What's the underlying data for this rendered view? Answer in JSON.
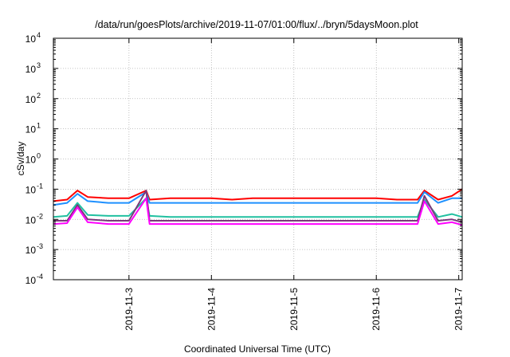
{
  "chart_data": {
    "type": "line",
    "title": "/data/run/goesPlots/archive/2019-11-07/01:00/flux/../bryn/5daysMoon.plot",
    "xlabel": "Coordinated Universal Time (UTC)",
    "ylabel": "cSv/day",
    "xscale": "time",
    "yscale": "log",
    "xlim": [
      "2019-11-02T02:00",
      "2019-11-07T01:00"
    ],
    "ylim": [
      0.0001,
      10000
    ],
    "grid": true,
    "x_ticks": [
      "2019-11-3",
      "2019-11-4",
      "2019-11-5",
      "2019-11-6",
      "2019-11-7"
    ],
    "y_ticks": [
      {
        "base": "10",
        "exp": "-4"
      },
      {
        "base": "10",
        "exp": "-3"
      },
      {
        "base": "10",
        "exp": "-2"
      },
      {
        "base": "10",
        "exp": "-1"
      },
      {
        "base": "10",
        "exp": "0"
      },
      {
        "base": "10",
        "exp": "1"
      },
      {
        "base": "10",
        "exp": "2"
      },
      {
        "base": "10",
        "exp": "3"
      },
      {
        "base": "10",
        "exp": "4"
      }
    ],
    "series": [
      {
        "color": "#ff0000",
        "x": [
          "2019-11-02T02:00",
          "2019-11-02T06:00",
          "2019-11-02T09:00",
          "2019-11-02T12:00",
          "2019-11-02T18:00",
          "2019-11-03T00:00",
          "2019-11-03T05:00",
          "2019-11-03T06:00",
          "2019-11-03T12:00",
          "2019-11-03T18:00",
          "2019-11-04T00:00",
          "2019-11-04T06:00",
          "2019-11-04T12:00",
          "2019-11-04T18:00",
          "2019-11-05T00:00",
          "2019-11-05T06:00",
          "2019-11-05T12:00",
          "2019-11-05T18:00",
          "2019-11-06T00:00",
          "2019-11-06T06:00",
          "2019-11-06T12:00",
          "2019-11-06T14:00",
          "2019-11-06T18:00",
          "2019-11-06T22:00",
          "2019-11-07T01:00"
        ],
        "y": [
          0.04,
          0.045,
          0.09,
          0.055,
          0.05,
          0.05,
          0.09,
          0.045,
          0.05,
          0.05,
          0.05,
          0.045,
          0.05,
          0.05,
          0.05,
          0.05,
          0.05,
          0.05,
          0.05,
          0.045,
          0.045,
          0.09,
          0.045,
          0.06,
          0.1
        ]
      },
      {
        "color": "#1e90ff",
        "x": [
          "2019-11-02T02:00",
          "2019-11-02T06:00",
          "2019-11-02T09:00",
          "2019-11-02T12:00",
          "2019-11-02T18:00",
          "2019-11-03T00:00",
          "2019-11-03T05:00",
          "2019-11-03T06:00",
          "2019-11-03T12:00",
          "2019-11-03T18:00",
          "2019-11-04T00:00",
          "2019-11-04T06:00",
          "2019-11-04T12:00",
          "2019-11-04T18:00",
          "2019-11-05T00:00",
          "2019-11-05T06:00",
          "2019-11-05T12:00",
          "2019-11-05T18:00",
          "2019-11-06T00:00",
          "2019-11-06T06:00",
          "2019-11-06T12:00",
          "2019-11-06T14:00",
          "2019-11-06T18:00",
          "2019-11-06T22:00",
          "2019-11-07T01:00"
        ],
        "y": [
          0.03,
          0.035,
          0.07,
          0.04,
          0.035,
          0.035,
          0.08,
          0.035,
          0.035,
          0.035,
          0.035,
          0.035,
          0.035,
          0.035,
          0.035,
          0.035,
          0.035,
          0.035,
          0.035,
          0.035,
          0.035,
          0.08,
          0.035,
          0.05,
          0.05
        ]
      },
      {
        "color": "#20c0a0",
        "x": [
          "2019-11-02T02:00",
          "2019-11-02T06:00",
          "2019-11-02T09:00",
          "2019-11-02T12:00",
          "2019-11-02T18:00",
          "2019-11-03T00:00",
          "2019-11-03T05:00",
          "2019-11-03T06:00",
          "2019-11-03T12:00",
          "2019-11-03T18:00",
          "2019-11-04T00:00",
          "2019-11-04T06:00",
          "2019-11-04T12:00",
          "2019-11-04T18:00",
          "2019-11-05T00:00",
          "2019-11-05T06:00",
          "2019-11-05T12:00",
          "2019-11-05T18:00",
          "2019-11-06T00:00",
          "2019-11-06T06:00",
          "2019-11-06T12:00",
          "2019-11-06T14:00",
          "2019-11-06T18:00",
          "2019-11-06T22:00",
          "2019-11-07T01:00"
        ],
        "y": [
          0.012,
          0.013,
          0.035,
          0.014,
          0.013,
          0.013,
          0.05,
          0.013,
          0.012,
          0.012,
          0.012,
          0.012,
          0.012,
          0.012,
          0.012,
          0.012,
          0.012,
          0.012,
          0.012,
          0.012,
          0.012,
          0.045,
          0.012,
          0.015,
          0.012
        ]
      },
      {
        "color": "#7a3a7a",
        "x": [
          "2019-11-02T02:00",
          "2019-11-02T06:00",
          "2019-11-02T09:00",
          "2019-11-02T12:00",
          "2019-11-02T18:00",
          "2019-11-03T00:00",
          "2019-11-03T05:00",
          "2019-11-03T06:00",
          "2019-11-03T12:00",
          "2019-11-03T18:00",
          "2019-11-04T00:00",
          "2019-11-04T06:00",
          "2019-11-04T12:00",
          "2019-11-04T18:00",
          "2019-11-05T00:00",
          "2019-11-05T06:00",
          "2019-11-05T12:00",
          "2019-11-05T18:00",
          "2019-11-06T00:00",
          "2019-11-06T06:00",
          "2019-11-06T12:00",
          "2019-11-06T14:00",
          "2019-11-06T18:00",
          "2019-11-06T22:00",
          "2019-11-07T01:00"
        ],
        "y": [
          0.009,
          0.009,
          0.03,
          0.01,
          0.009,
          0.009,
          0.09,
          0.009,
          0.009,
          0.009,
          0.009,
          0.009,
          0.009,
          0.009,
          0.009,
          0.009,
          0.009,
          0.009,
          0.009,
          0.009,
          0.009,
          0.06,
          0.009,
          0.01,
          0.008
        ]
      },
      {
        "color": "#ff00ff",
        "x": [
          "2019-11-02T02:00",
          "2019-11-02T06:00",
          "2019-11-02T09:00",
          "2019-11-02T12:00",
          "2019-11-02T18:00",
          "2019-11-03T00:00",
          "2019-11-03T05:00",
          "2019-11-03T06:00",
          "2019-11-03T12:00",
          "2019-11-03T18:00",
          "2019-11-04T00:00",
          "2019-11-04T06:00",
          "2019-11-04T12:00",
          "2019-11-04T18:00",
          "2019-11-05T00:00",
          "2019-11-05T06:00",
          "2019-11-05T12:00",
          "2019-11-05T18:00",
          "2019-11-06T00:00",
          "2019-11-06T06:00",
          "2019-11-06T12:00",
          "2019-11-06T14:00",
          "2019-11-06T18:00",
          "2019-11-06T22:00",
          "2019-11-07T01:00"
        ],
        "y": [
          0.007,
          0.0075,
          0.025,
          0.008,
          0.007,
          0.007,
          0.05,
          0.007,
          0.007,
          0.007,
          0.007,
          0.007,
          0.007,
          0.007,
          0.007,
          0.007,
          0.007,
          0.007,
          0.007,
          0.007,
          0.007,
          0.04,
          0.007,
          0.008,
          0.0065
        ]
      }
    ]
  }
}
